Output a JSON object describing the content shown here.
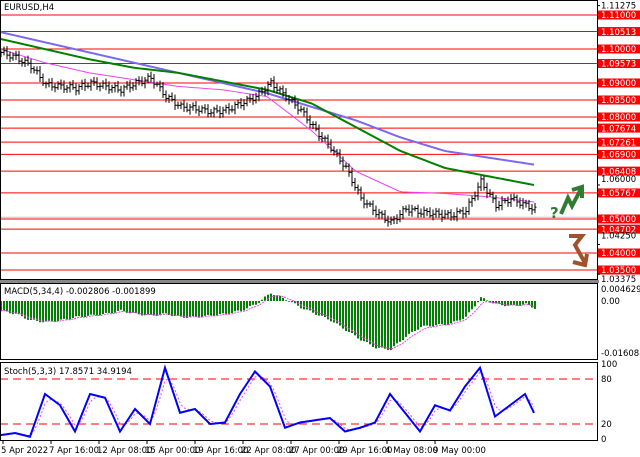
{
  "chart_data": [
    {
      "type": "ohlc",
      "title": "EURUSD,H4",
      "ylim": [
        1.0335,
        1.1135
      ],
      "x_tick_labels": [
        "5 Apr 2022",
        "7 Apr 16:00",
        "12 Apr 08:00",
        "15 Apr 00:00",
        "19 Apr 16:00",
        "22 Apr 08:00",
        "27 Apr 00:00",
        "29 Apr 16:00",
        "4 May 08:00",
        "9 May 00:00"
      ],
      "y_tick_labels": [
        "1.11275",
        "1.06000",
        "1.04250",
        "1.03375"
      ],
      "levels": [
        {
          "value": 1.11,
          "label": "1.11000"
        },
        {
          "value": 1.10513,
          "label": "1.10513"
        },
        {
          "value": 1.1,
          "label": "1.10000"
        },
        {
          "value": 1.09573,
          "label": "1.09573"
        },
        {
          "value": 1.09,
          "label": "1.09000"
        },
        {
          "value": 1.085,
          "label": "1.08500"
        },
        {
          "value": 1.08,
          "label": "1.08000"
        },
        {
          "value": 1.07674,
          "label": "1.07674"
        },
        {
          "value": 1.07261,
          "label": "1.07261"
        },
        {
          "value": 1.069,
          "label": "1.06900"
        },
        {
          "value": 1.06408,
          "label": "1.06408"
        },
        {
          "value": 1.05767,
          "label": "1.05767"
        },
        {
          "value": 1.05,
          "label": "1.05000"
        },
        {
          "value": 1.04702,
          "label": "1.04702"
        },
        {
          "value": 1.04,
          "label": "1.04000"
        },
        {
          "value": 1.035,
          "label": "1.03500"
        }
      ],
      "close_samples_every_5_bars": [
        1.099,
        1.0975,
        1.095,
        1.0895,
        1.089,
        1.0885,
        1.09,
        1.089,
        1.088,
        1.09,
        1.0915,
        1.086,
        1.083,
        1.0825,
        1.0815,
        1.082,
        1.084,
        1.086,
        1.09,
        1.086,
        1.082,
        1.076,
        1.071,
        1.065,
        1.056,
        1.052,
        1.049,
        1.053,
        1.052,
        1.0515,
        1.051,
        1.0525,
        1.061,
        1.054,
        1.056,
        1.054,
        1.052
      ],
      "moving_averages": [
        {
          "color": "#7b68ee",
          "values": [
            1.105,
            1.102,
            1.099,
            1.096,
            1.093,
            1.09,
            1.087,
            1.083,
            1.079,
            1.074,
            1.07,
            1.068,
            1.066
          ]
        },
        {
          "color": "#008000",
          "values": [
            1.103,
            1.1,
            1.097,
            1.0945,
            1.093,
            1.0905,
            1.088,
            1.084,
            1.077,
            1.07,
            1.065,
            1.0625,
            1.06
          ]
        },
        {
          "color": "#ee44ee",
          "values": [
            1.1,
            1.096,
            1.093,
            1.091,
            1.089,
            1.088,
            1.086,
            1.076,
            1.064,
            1.058,
            1.0575,
            1.0565,
            1.055
          ]
        }
      ],
      "forecast": {
        "up_color": "#2e7d32",
        "down_color": "#a0522d",
        "question_mark": "?"
      }
    },
    {
      "type": "bar",
      "title": "MACD(5,34,4) -0.002806 -0.001899",
      "ylim": [
        -0.016088,
        0.004629
      ],
      "y_tick_labels": [
        "0.004629",
        "0.00",
        "-0.016088"
      ],
      "histogram_color": "#008000",
      "signal_color": "#ee44ee",
      "histogram_samples_every_5_bars": [
        -0.003,
        -0.004,
        -0.006,
        -0.0065,
        -0.006,
        -0.005,
        -0.0045,
        -0.004,
        -0.003,
        -0.004,
        -0.0045,
        -0.004,
        -0.005,
        -0.005,
        -0.0045,
        -0.004,
        -0.003,
        -0.001,
        0.0025,
        0.0005,
        -0.002,
        -0.004,
        -0.006,
        -0.009,
        -0.012,
        -0.0145,
        -0.015,
        -0.011,
        -0.008,
        -0.0075,
        -0.007,
        -0.005,
        0.001,
        -0.001,
        -0.0015,
        -0.001,
        -0.003
      ]
    },
    {
      "type": "line",
      "title": "Stoch(5,3,3) 17.8571 34.9194",
      "ylim": [
        0,
        100
      ],
      "y_tick_labels": [
        "100",
        "80",
        "20",
        "0"
      ],
      "levels": [
        80,
        20
      ],
      "main_color": "#0000ff",
      "signal_color": "#ee44ee",
      "main_samples_every_5_bars": [
        5,
        8,
        3,
        60,
        45,
        10,
        60,
        55,
        10,
        40,
        20,
        95,
        35,
        40,
        20,
        22,
        60,
        90,
        70,
        15,
        22,
        25,
        28,
        10,
        15,
        22,
        60,
        35,
        10,
        45,
        38,
        70,
        95,
        30,
        45,
        60,
        18
      ]
    }
  ]
}
